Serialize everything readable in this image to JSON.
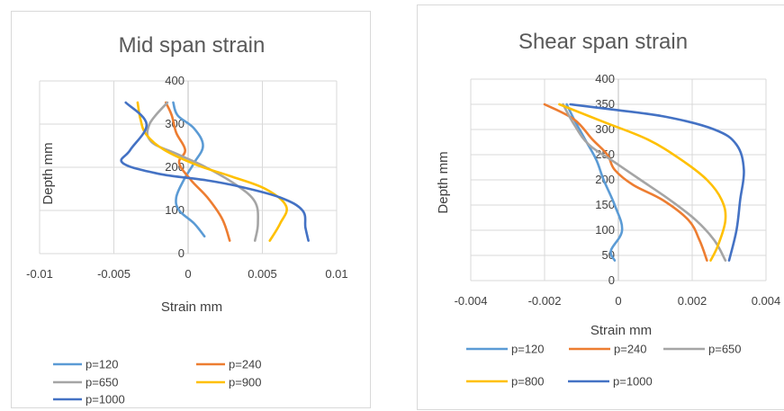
{
  "colors": {
    "p120": "#5B9BD5",
    "p240": "#ED7D31",
    "p650": "#A5A5A5",
    "p800": "#FFC000",
    "p900": "#FFC000",
    "p1000": "#4472C4",
    "grid": "#d9d9d9",
    "axis": "#bfbfbf"
  },
  "chart_data": [
    {
      "type": "line",
      "title": "Mid span strain",
      "xlabel": "Strain mm",
      "ylabel": "Depth mm",
      "xlim": [
        -0.01,
        0.01
      ],
      "ylim": [
        0,
        400
      ],
      "x_ticks": [
        -0.01,
        -0.005,
        0,
        0.005,
        0.01
      ],
      "x_tick_labels": [
        "-0.01",
        "-0.005",
        "0",
        "0.005",
        "0.01"
      ],
      "y_ticks": [
        0,
        100,
        200,
        300,
        400
      ],
      "y_tick_labels": [
        "0",
        "100",
        "200",
        "300",
        "400"
      ],
      "grid": true,
      "legend_position": "bottom",
      "series": [
        {
          "name": "p=120",
          "color_key": "p120",
          "points": [
            [
              0.0011,
              40
            ],
            [
              0.0004,
              70
            ],
            [
              -0.0006,
              100
            ],
            [
              -0.0008,
              130
            ],
            [
              -0.0003,
              170
            ],
            [
              0.0004,
              210
            ],
            [
              0.001,
              250
            ],
            [
              0.0004,
              290
            ],
            [
              -0.0007,
              320
            ],
            [
              -0.001,
              350
            ]
          ]
        },
        {
          "name": "p=240",
          "color_key": "p240",
          "points": [
            [
              0.0028,
              30
            ],
            [
              0.0023,
              80
            ],
            [
              0.0013,
              130
            ],
            [
              0.0002,
              170
            ],
            [
              -0.0006,
              210
            ],
            [
              -0.0002,
              240
            ],
            [
              -0.0008,
              280
            ],
            [
              -0.0011,
              320
            ],
            [
              -0.0015,
              350
            ]
          ]
        },
        {
          "name": "p=650",
          "color_key": "p650",
          "points": [
            [
              0.0045,
              30
            ],
            [
              0.0047,
              70
            ],
            [
              0.0045,
              120
            ],
            [
              0.0032,
              160
            ],
            [
              0.0012,
              200
            ],
            [
              -0.0007,
              230
            ],
            [
              -0.0025,
              260
            ],
            [
              -0.0026,
              300
            ],
            [
              -0.0014,
              350
            ]
          ]
        },
        {
          "name": "p=900",
          "color_key": "p900",
          "points": [
            [
              0.0055,
              30
            ],
            [
              0.0062,
              70
            ],
            [
              0.0066,
              110
            ],
            [
              0.0052,
              150
            ],
            [
              0.0028,
              180
            ],
            [
              0.0006,
              205
            ],
            [
              -0.0016,
              240
            ],
            [
              -0.0028,
              275
            ],
            [
              -0.0032,
              310
            ],
            [
              -0.0034,
              350
            ]
          ]
        },
        {
          "name": "p=1000",
          "color_key": "p1000",
          "points": [
            [
              0.0081,
              30
            ],
            [
              0.0079,
              60
            ],
            [
              0.0077,
              100
            ],
            [
              0.0062,
              130
            ],
            [
              0.0035,
              155
            ],
            [
              0.0012,
              170
            ],
            [
              -0.002,
              185
            ],
            [
              -0.0044,
              210
            ],
            [
              -0.0039,
              240
            ],
            [
              -0.0028,
              300
            ],
            [
              -0.0042,
              350
            ]
          ]
        }
      ],
      "legend": [
        "p=120",
        "p=240",
        "p=650",
        "p=900",
        "p=1000"
      ]
    },
    {
      "type": "line",
      "title": "Shear span strain",
      "xlabel": "Strain mm",
      "ylabel": "Depth mm",
      "xlim": [
        -0.004,
        0.004
      ],
      "ylim": [
        0,
        400
      ],
      "x_ticks": [
        -0.004,
        -0.002,
        0,
        0.002,
        0.004
      ],
      "x_tick_labels": [
        "-0.004",
        "-0.002",
        "0",
        "0.002",
        "0.004"
      ],
      "y_ticks": [
        0,
        50,
        100,
        150,
        200,
        250,
        300,
        350,
        400
      ],
      "y_tick_labels": [
        "0",
        "50",
        "100",
        "150",
        "200",
        "250",
        "300",
        "350",
        "400"
      ],
      "grid": true,
      "legend_position": "bottom",
      "series": [
        {
          "name": "p=120",
          "color_key": "p120",
          "points": [
            [
              -0.0001,
              40
            ],
            [
              -0.0002,
              60
            ],
            [
              0.0001,
              100
            ],
            [
              -0.0001,
              150
            ],
            [
              -0.0004,
              200
            ],
            [
              -0.0006,
              240
            ],
            [
              -0.0009,
              280
            ],
            [
              -0.0012,
              320
            ],
            [
              -0.0014,
              350
            ]
          ]
        },
        {
          "name": "p=240",
          "color_key": "p240",
          "points": [
            [
              0.0024,
              40
            ],
            [
              0.0022,
              80
            ],
            [
              0.0019,
              120
            ],
            [
              0.0012,
              160
            ],
            [
              0.0004,
              190
            ],
            [
              -0.0001,
              220
            ],
            [
              -0.0003,
              250
            ],
            [
              -0.0007,
              280
            ],
            [
              -0.0012,
              320
            ],
            [
              -0.002,
              350
            ]
          ]
        },
        {
          "name": "p=650",
          "color_key": "p650",
          "points": [
            [
              0.0029,
              40
            ],
            [
              0.0026,
              80
            ],
            [
              0.0021,
              120
            ],
            [
              0.0014,
              160
            ],
            [
              0.0006,
              200
            ],
            [
              -0.0001,
              235
            ],
            [
              -0.0008,
              270
            ],
            [
              -0.0012,
              310
            ],
            [
              -0.0015,
              350
            ]
          ]
        },
        {
          "name": "p=800",
          "color_key": "p800",
          "points": [
            [
              0.0025,
              40
            ],
            [
              0.0027,
              70
            ],
            [
              0.0029,
              120
            ],
            [
              0.0028,
              160
            ],
            [
              0.0024,
              200
            ],
            [
              0.0017,
              240
            ],
            [
              0.0008,
              280
            ],
            [
              -0.0004,
              315
            ],
            [
              -0.0016,
              350
            ]
          ]
        },
        {
          "name": "p=1000",
          "color_key": "p1000",
          "points": [
            [
              0.003,
              40
            ],
            [
              0.0032,
              100
            ],
            [
              0.0033,
              160
            ],
            [
              0.0034,
              220
            ],
            [
              0.0032,
              270
            ],
            [
              0.0026,
              300
            ],
            [
              0.0013,
              325
            ],
            [
              -0.0002,
              340
            ],
            [
              -0.0013,
              350
            ]
          ]
        }
      ],
      "legend": [
        "p=120",
        "p=240",
        "p=650",
        "p=800",
        "p=1000"
      ]
    }
  ]
}
